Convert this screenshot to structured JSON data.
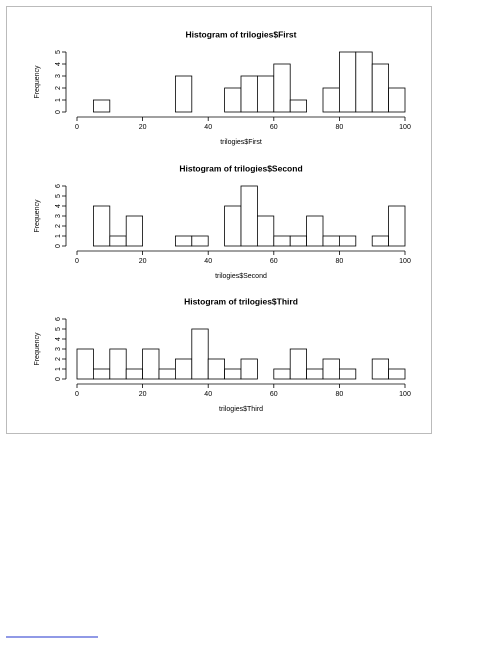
{
  "chart_data": [
    {
      "type": "histogram",
      "title": "Histogram of trilogies$First",
      "x_label": "trilogies$First",
      "y_label": "Frequency",
      "bins": [
        5,
        10,
        15,
        20,
        25,
        30,
        35,
        40,
        45,
        50,
        55,
        60,
        65,
        70,
        75,
        80,
        85,
        90,
        95,
        100
      ],
      "values": [
        1,
        0,
        0,
        0,
        0,
        3,
        0,
        0,
        2,
        3,
        3,
        4,
        1,
        0,
        2,
        5,
        5,
        4,
        2
      ],
      "color": "#ffffff",
      "xlim": [
        0,
        100
      ],
      "xticks": [
        0,
        20,
        40,
        60,
        80,
        100
      ],
      "ylim": [
        0,
        5
      ],
      "yticks": [
        0,
        1,
        2,
        3,
        4,
        5
      ]
    },
    {
      "type": "histogram",
      "title": "Histogram of trilogies$Second",
      "x_label": "trilogies$Second",
      "y_label": "Frequency",
      "bins": [
        5,
        10,
        15,
        20,
        25,
        30,
        35,
        40,
        45,
        50,
        55,
        60,
        65,
        70,
        75,
        80,
        85,
        90,
        95,
        100
      ],
      "values": [
        4,
        1,
        3,
        0,
        0,
        1,
        1,
        0,
        4,
        6,
        3,
        1,
        1,
        3,
        1,
        1,
        0,
        1,
        4
      ],
      "color": "#ffffff",
      "xlim": [
        0,
        100
      ],
      "xticks": [
        0,
        20,
        40,
        60,
        80,
        100
      ],
      "ylim": [
        0,
        6
      ],
      "yticks": [
        0,
        1,
        2,
        3,
        4,
        5,
        6
      ]
    },
    {
      "type": "histogram",
      "title": "Histogram of trilogies$Third",
      "x_label": "trilogies$Third",
      "y_label": "Frequency",
      "bins": [
        0,
        5,
        10,
        15,
        20,
        25,
        30,
        35,
        40,
        45,
        50,
        55,
        60,
        65,
        70,
        75,
        80,
        85,
        90,
        95,
        100
      ],
      "values": [
        3,
        1,
        3,
        1,
        3,
        1,
        2,
        5,
        2,
        1,
        2,
        0,
        1,
        3,
        1,
        2,
        1,
        0,
        2,
        1
      ],
      "color": "#ffffff",
      "xlim": [
        0,
        100
      ],
      "xticks": [
        0,
        20,
        40,
        60,
        80,
        100
      ],
      "ylim": [
        0,
        6
      ],
      "yticks": [
        0,
        1,
        2,
        3,
        4,
        5,
        6
      ]
    }
  ]
}
